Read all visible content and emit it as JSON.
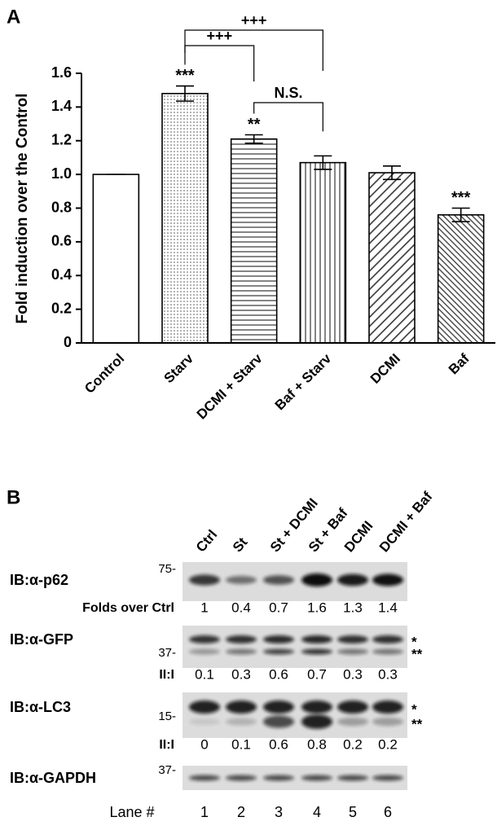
{
  "chart_data": {
    "type": "bar",
    "panel": "A",
    "ylabel": "Fold induction over the Control",
    "categories": [
      "Control",
      "Starv",
      "DCMI + Starv",
      "Baf + Starv",
      "DCMI",
      "Baf"
    ],
    "values": [
      1.0,
      1.48,
      1.21,
      1.07,
      1.01,
      0.76
    ],
    "errors": [
      0,
      0.045,
      0.025,
      0.04,
      0.04,
      0.04
    ],
    "ylim": [
      0,
      1.6
    ],
    "yticks": [
      0,
      0.2,
      0.4,
      0.6,
      0.8,
      {
        "value": 1,
        "label": "1.0"
      },
      1.2,
      1.4,
      1.6
    ],
    "significance": [
      {
        "index": 1,
        "label": "***"
      },
      {
        "index": 2,
        "label": "**"
      },
      {
        "index": 5,
        "label": "***"
      }
    ],
    "comparisons": [
      {
        "from": 1,
        "to": 2,
        "label": "+++"
      },
      {
        "from": 1,
        "to": 3,
        "label": "+++"
      },
      {
        "from": 2,
        "to": 3,
        "label": "N.S."
      }
    ]
  },
  "blot": {
    "panel": "B",
    "lanes": [
      "Ctrl",
      "St",
      "St + DCMI",
      "St + Baf",
      "DCMI",
      "DCMI + Baf"
    ],
    "lane_label": "Lane #",
    "lane_numbers": [
      1,
      2,
      3,
      4,
      5,
      6
    ],
    "rows": [
      {
        "label": "IB:α-p62",
        "marker": "75-",
        "quant_label": "Folds over Ctrl",
        "quant": [
          1,
          0.4,
          0.7,
          1.6,
          1.3,
          1.4
        ],
        "bands_right": []
      },
      {
        "label": "IB:α-GFP",
        "marker": "37-",
        "quant_label": "II:I",
        "quant": [
          0.1,
          0.3,
          0.6,
          0.7,
          0.3,
          0.3
        ],
        "bands_right": [
          "*",
          "**"
        ]
      },
      {
        "label": "IB:α-LC3",
        "marker": "15-",
        "quant_label": "II:I",
        "quant": [
          0,
          0.1,
          0.6,
          0.8,
          0.2,
          0.2
        ],
        "bands_right": [
          "*",
          "**"
        ]
      },
      {
        "label": "IB:α-GAPDH",
        "marker": "37-",
        "bands_right": []
      }
    ]
  }
}
